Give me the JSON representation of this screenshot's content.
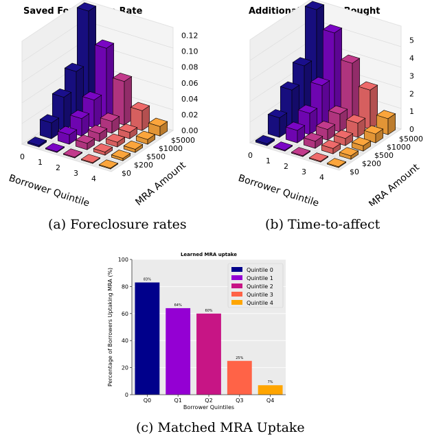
{
  "captions": {
    "a": "(a) Foreclosure rates",
    "b": "(b) Time-to-affect",
    "c": "(c) Matched MRA Uptake"
  },
  "chart_data": [
    {
      "type": "bar3d",
      "title": "Saved Foreclosure Rate",
      "xlabel": "Borrower Quintile",
      "ylabel": "MRA Amount",
      "x_ticks": [
        "0",
        "1",
        "2",
        "3",
        "4"
      ],
      "y_ticks": [
        "$0",
        "$200",
        "$500",
        "$1000",
        "$5000"
      ],
      "z_ticks": [
        "0.00",
        "0.02",
        "0.04",
        "0.06",
        "0.08",
        "0.10",
        "0.12"
      ],
      "zlim": [
        0,
        0.13
      ],
      "colors": [
        "#1a0f8c",
        "#7a06c4",
        "#c23a8c",
        "#ee6a6a",
        "#fba53c"
      ],
      "values": [
        [
          0.002,
          0.02,
          0.042,
          0.064,
          0.13
        ],
        [
          0.001,
          0.012,
          0.022,
          0.035,
          0.09
        ],
        [
          0.001,
          0.008,
          0.01,
          0.015,
          0.055
        ],
        [
          0.001,
          0.004,
          0.006,
          0.008,
          0.025
        ],
        [
          0.001,
          0.003,
          0.004,
          0.006,
          0.012
        ]
      ]
    },
    {
      "type": "bar3d",
      "title": "Additional Months Bought",
      "xlabel": "Borrower Quintile",
      "ylabel": "MRA Amount",
      "x_ticks": [
        "0",
        "1",
        "2",
        "3",
        "4"
      ],
      "y_ticks": [
        "$0",
        "$200",
        "$500",
        "$1000",
        "$5000"
      ],
      "z_ticks": [
        "0",
        "1",
        "2",
        "3",
        "4",
        "5"
      ],
      "zlim": [
        0,
        5.8
      ],
      "colors": [
        "#1a0f8c",
        "#7a06c4",
        "#c23a8c",
        "#ee6a6a",
        "#fba53c"
      ],
      "values": [
        [
          0.1,
          1.1,
          2.2,
          3.1,
          5.8
        ],
        [
          0.05,
          0.7,
          1.2,
          2.3,
          4.8
        ],
        [
          0.05,
          0.4,
          0.6,
          1.0,
          3.4
        ],
        [
          0.05,
          0.3,
          0.4,
          0.8,
          2.2
        ],
        [
          0.05,
          0.2,
          0.3,
          0.5,
          0.9
        ]
      ]
    },
    {
      "type": "bar",
      "title": "Learned MRA uptake",
      "xlabel": "Borrower Quintiles",
      "ylabel": "Percentage of Borrowers Uptaking MRA (%)",
      "categories": [
        "Q0",
        "Q1",
        "Q2",
        "Q3",
        "Q4"
      ],
      "values": [
        83,
        64,
        60,
        25,
        7
      ],
      "data_labels": [
        "83%",
        "64%",
        "60%",
        "25%",
        "7%"
      ],
      "ylim": [
        0,
        100
      ],
      "y_ticks": [
        "0",
        "20",
        "40",
        "60",
        "80",
        "100"
      ],
      "legend": [
        "Quintile 0",
        "Quintile 1",
        "Quintile 2",
        "Quintile 3",
        "Quintile 4"
      ],
      "legend_position": "top-right",
      "grid": true,
      "colors": [
        "#00008b",
        "#9400d3",
        "#c71585",
        "#ff6347",
        "#ffa500"
      ]
    }
  ]
}
